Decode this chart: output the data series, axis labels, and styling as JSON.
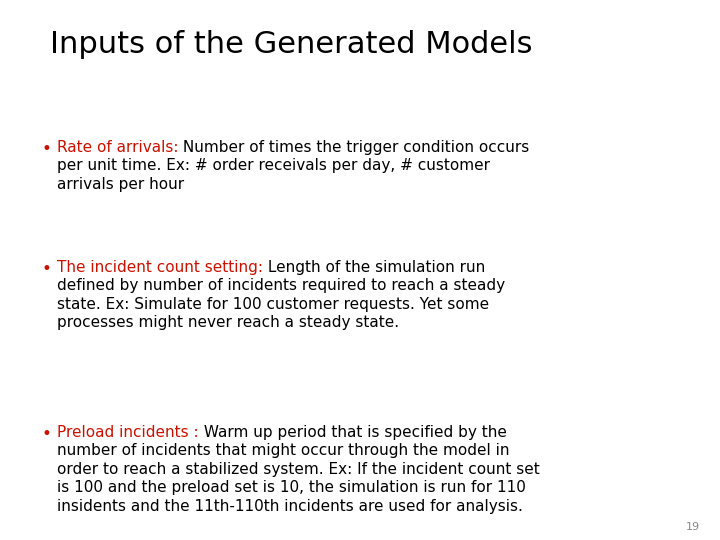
{
  "title": "Inputs of the Generated Models",
  "background_color": "#ffffff",
  "title_color": "#000000",
  "title_fontsize": 22,
  "bullet_color": "#cc1100",
  "body_color": "#000000",
  "body_fontsize": 11.0,
  "page_number": "19",
  "bullets": [
    {
      "label": "Rate of arrivals:",
      "lines": [
        " Number of times the trigger condition occurs",
        "per unit time. Ex: # order receivals per day, # customer",
        "arrivals per hour"
      ]
    },
    {
      "label": "The incident count setting:",
      "lines": [
        " Length of the simulation run",
        "defined by number of incidents required to reach a steady",
        "state. Ex: Simulate for 100 customer requests. Yet some",
        "processes might never reach a steady state."
      ]
    },
    {
      "label": "Preload incidents :",
      "lines": [
        " Warm up period that is specified by the",
        "number of incidents that might occur through the model in",
        "order to reach a stabilized system. Ex: If the incident count set",
        "is 100 and the preload set is 10, the simulation is run for 110",
        "insidents and the 11th-110th incidents are used for analysis."
      ]
    }
  ]
}
